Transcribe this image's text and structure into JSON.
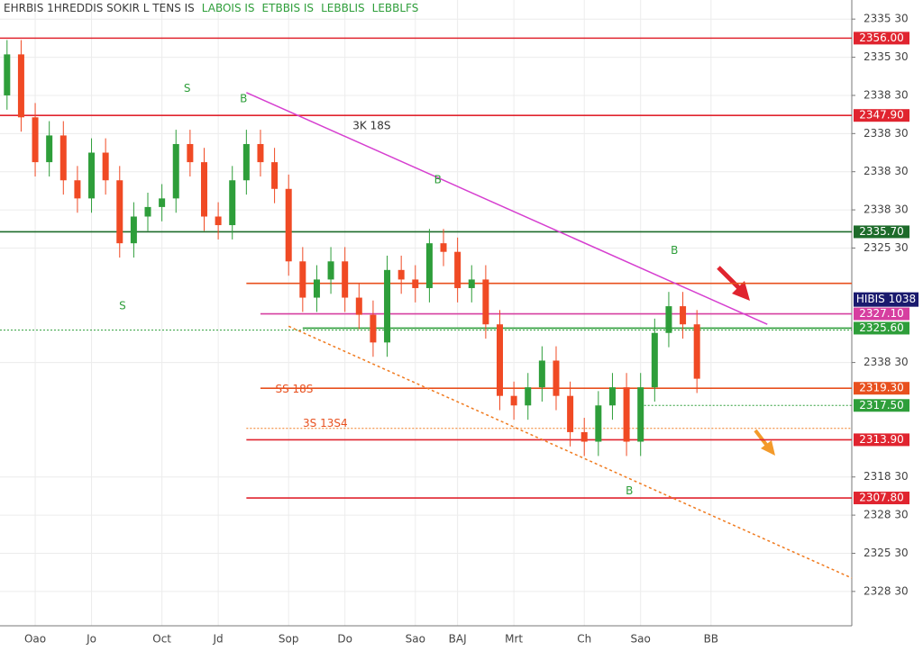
{
  "chart_data": {
    "type": "candlestick",
    "header": [
      {
        "text": "EHRBIS 1HREDDIS SOKIR L TENS IS",
        "color": "#3a3a3a"
      },
      {
        "text": "LABOIS IS",
        "color": "#2e9e3a"
      },
      {
        "text": "ETBBIS IS",
        "color": "#2e9e3a"
      },
      {
        "text": "LEBBLIS",
        "color": "#2e9e3a"
      },
      {
        "text": "LEBBLFS",
        "color": "#2e9e3a"
      }
    ],
    "x": [
      0,
      1,
      2,
      3,
      4,
      5,
      6,
      7,
      8,
      9,
      10,
      11,
      12,
      13,
      14,
      15,
      16,
      17,
      18,
      19,
      20,
      21,
      22,
      23,
      24,
      25,
      26,
      27,
      28,
      29,
      30,
      31,
      32,
      33,
      34,
      35,
      36,
      37,
      38,
      39,
      40,
      41,
      42,
      43,
      44,
      45,
      46,
      47,
      48,
      49
    ],
    "open": [
      2350.0,
      2354.3,
      2347.7,
      2343.0,
      2345.8,
      2341.1,
      2339.2,
      2344.0,
      2341.1,
      2334.5,
      2337.3,
      2338.3,
      2339.2,
      2344.9,
      2343.0,
      2337.3,
      2336.4,
      2341.1,
      2344.9,
      2343.0,
      2340.2,
      2332.6,
      2328.8,
      2330.7,
      2332.6,
      2328.8,
      2327.0,
      2324.1,
      2331.7,
      2330.7,
      2329.8,
      2334.5,
      2333.6,
      2329.8,
      2330.7,
      2326.0,
      2318.5,
      2317.5,
      2319.4,
      2322.2,
      2318.5,
      2314.7,
      2313.7,
      2317.5,
      2319.4,
      2313.7,
      2319.4,
      2325.1,
      2327.9,
      2326.0
    ],
    "close": [
      2354.3,
      2347.7,
      2343.0,
      2345.8,
      2341.1,
      2339.2,
      2344.0,
      2341.1,
      2334.5,
      2337.3,
      2338.3,
      2339.2,
      2344.9,
      2343.0,
      2337.3,
      2336.4,
      2341.1,
      2344.9,
      2343.0,
      2340.2,
      2332.6,
      2328.8,
      2330.7,
      2332.6,
      2328.8,
      2327.0,
      2324.1,
      2331.7,
      2330.7,
      2329.8,
      2334.5,
      2333.6,
      2329.8,
      2330.7,
      2326.0,
      2318.5,
      2317.5,
      2319.4,
      2322.2,
      2318.5,
      2314.7,
      2313.7,
      2317.5,
      2319.4,
      2313.7,
      2319.4,
      2325.1,
      2327.9,
      2326.0,
      2320.3
    ],
    "high": [
      2355.8,
      2355.8,
      2349.2,
      2347.3,
      2347.3,
      2342.6,
      2345.5,
      2345.5,
      2342.6,
      2338.8,
      2339.8,
      2340.7,
      2346.4,
      2346.4,
      2344.5,
      2338.8,
      2342.6,
      2346.4,
      2346.4,
      2344.5,
      2341.7,
      2334.1,
      2332.2,
      2334.1,
      2334.1,
      2330.3,
      2328.5,
      2333.2,
      2333.2,
      2332.2,
      2336.0,
      2336.0,
      2335.1,
      2332.2,
      2332.2,
      2327.5,
      2320.0,
      2320.9,
      2323.7,
      2323.7,
      2320.0,
      2316.2,
      2319.0,
      2320.9,
      2320.9,
      2320.9,
      2326.6,
      2329.4,
      2329.4,
      2327.5
    ],
    "low": [
      2348.5,
      2346.2,
      2341.5,
      2341.5,
      2339.6,
      2337.7,
      2337.7,
      2339.6,
      2333.0,
      2333.0,
      2335.8,
      2336.8,
      2337.7,
      2341.5,
      2335.8,
      2334.9,
      2334.9,
      2339.6,
      2341.5,
      2338.7,
      2331.1,
      2327.3,
      2327.3,
      2329.2,
      2327.3,
      2325.5,
      2322.6,
      2322.6,
      2329.2,
      2328.3,
      2328.3,
      2332.1,
      2328.3,
      2328.3,
      2324.5,
      2317.0,
      2316.0,
      2316.0,
      2317.9,
      2317.0,
      2313.2,
      2312.2,
      2312.2,
      2316.0,
      2312.2,
      2312.2,
      2317.9,
      2323.6,
      2324.5,
      2318.8
    ],
    "up_color": "#2e9e3a",
    "down_color": "#f04a24",
    "xlim": [
      -0.5,
      60
    ],
    "xticks": [
      {
        "value": 2,
        "label": "Oao"
      },
      {
        "value": 6,
        "label": "Jo"
      },
      {
        "value": 11,
        "label": "Oct"
      },
      {
        "value": 15,
        "label": "Jd"
      },
      {
        "value": 20,
        "label": "Sop"
      },
      {
        "value": 24,
        "label": "Do"
      },
      {
        "value": 29,
        "label": "Sao"
      },
      {
        "value": 32,
        "label": "BAJ"
      },
      {
        "value": 36,
        "label": "Mrt"
      },
      {
        "value": 41,
        "label": "Ch"
      },
      {
        "value": 45,
        "label": "Sao"
      },
      {
        "value": 50,
        "label": "BB"
      }
    ],
    "ylim": [
      2294.4,
      2360
    ],
    "yticks": [
      {
        "value": 2358,
        "label": "2335 30"
      },
      {
        "value": 2354,
        "label": "2335 30"
      },
      {
        "value": 2350,
        "label": "2338 30"
      },
      {
        "value": 2346,
        "label": "2338 30"
      },
      {
        "value": 2342,
        "label": "2338 30"
      },
      {
        "value": 2338,
        "label": "2338 30"
      },
      {
        "value": 2334,
        "label": "2325 30"
      },
      {
        "value": 2322,
        "label": "2338 30"
      },
      {
        "value": 2310,
        "label": "2318 30"
      },
      {
        "value": 2306,
        "label": "2328 30"
      },
      {
        "value": 2302,
        "label": "2325 30"
      },
      {
        "value": 2298,
        "label": "2328 30"
      }
    ],
    "grid": true,
    "levels": [
      {
        "value": 2356.0,
        "color": "#e0242f",
        "label": "2356.00"
      },
      {
        "value": 2347.9,
        "color": "#e0242f",
        "label": "2347.90"
      },
      {
        "value": 2335.7,
        "color": "#1d6b2a",
        "label": "2335.70"
      },
      {
        "value": 2330.3,
        "color": "#e8501e",
        "start": 17
      },
      {
        "value": 2327.1,
        "color": "#d63fa0",
        "start": 18,
        "label": "2327.10"
      },
      {
        "value": 2325.6,
        "color": "#2e9e3a",
        "start": 21,
        "label": "2325.60"
      },
      {
        "value": 2325.4,
        "color": "#2e9e3a",
        "dash": true
      },
      {
        "value": 2319.3,
        "color": "#e8501e",
        "start": 18,
        "label": "2319.30"
      },
      {
        "value": 2317.5,
        "color": "#2e9e3a",
        "start": 45,
        "dash": true,
        "label": "2317.50"
      },
      {
        "value": 2315.1,
        "color": "#f07a1e",
        "start": 17,
        "dash": true
      },
      {
        "value": 2313.9,
        "color": "#e0242f",
        "start": 17,
        "label": "2313.90"
      },
      {
        "value": 2307.8,
        "color": "#e0242f",
        "start": 17,
        "label": "2307.80"
      }
    ],
    "price_marker": {
      "value": 2328.6,
      "label": "HIBIS 1038",
      "color": "#1a1a6e"
    },
    "trendlines": [
      {
        "color": "#d63fd0",
        "x": [
          17,
          54
        ],
        "y": [
          2350.3,
          2326.0
        ]
      },
      {
        "color": "#f07a1e",
        "dash": true,
        "x": [
          20,
          60
        ],
        "y": [
          2325.8,
          2299.4
        ]
      }
    ],
    "annotations": [
      {
        "text": "S",
        "x": 12.8,
        "y": 2350.7,
        "color": "#2e9e3a"
      },
      {
        "text": "S",
        "x": 8.2,
        "y": 2327.9,
        "color": "#2e9e3a"
      },
      {
        "text": "B",
        "x": 16.8,
        "y": 2349.6,
        "color": "#2e9e3a"
      },
      {
        "text": "B",
        "x": 30.6,
        "y": 2341.1,
        "color": "#2e9e3a"
      },
      {
        "text": "B",
        "x": 47.4,
        "y": 2333.7,
        "color": "#2e9e3a"
      },
      {
        "text": "B",
        "x": 44.2,
        "y": 2308.5,
        "color": "#2e9e3a"
      },
      {
        "text": "3K 18S",
        "x": 25.9,
        "y": 2346.8,
        "color": "#333333"
      },
      {
        "text": "SS 18S",
        "x": 20.4,
        "y": 2319.2,
        "color": "#e8501e"
      },
      {
        "text": "3S 13S4",
        "x": 22.6,
        "y": 2315.6,
        "color": "#e8501e"
      }
    ]
  }
}
